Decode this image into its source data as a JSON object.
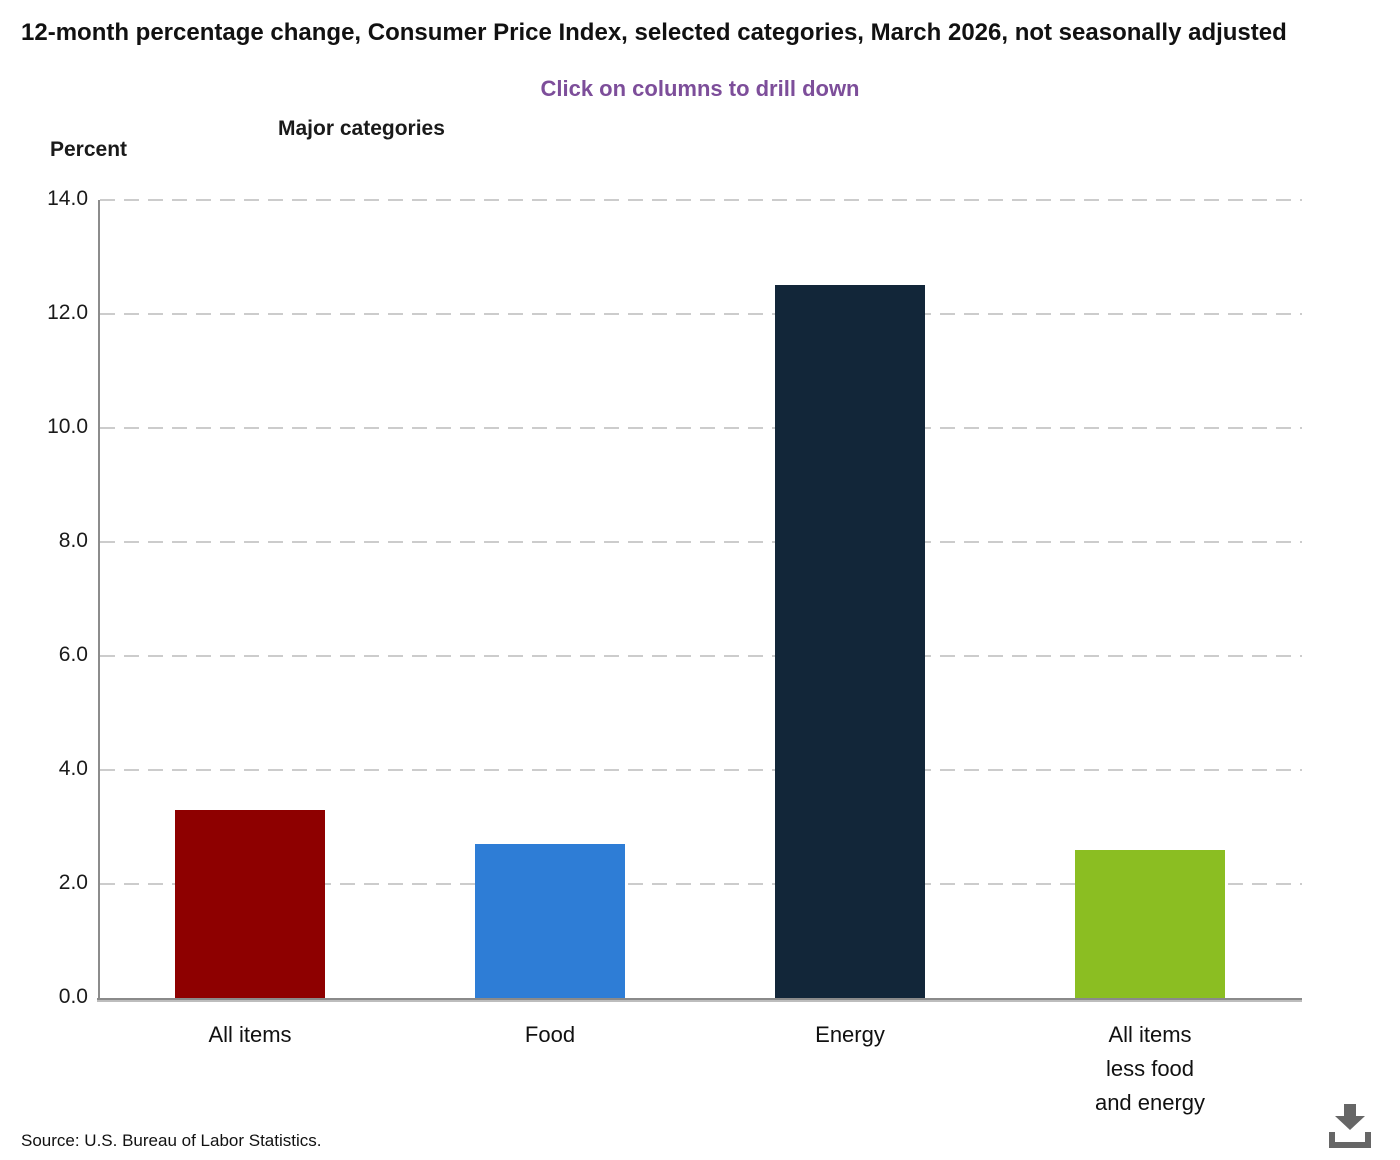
{
  "header": {
    "title": "12-month percentage change, Consumer Price Index, selected categories, March 2026, not seasonally adjusted",
    "subtitle": "Click on columns to drill down"
  },
  "chart_data": {
    "type": "bar",
    "title": "12-month percentage change, Consumer Price Index, selected categories, March 2026, not seasonally adjusted",
    "xlabel": "Major categories",
    "ylabel": "Percent",
    "categories": [
      "All items",
      "Food",
      "Energy",
      "All items less food and energy"
    ],
    "category_label_lines": [
      [
        "All items"
      ],
      [
        "Food"
      ],
      [
        "Energy"
      ],
      [
        "All items",
        "less food",
        "and energy"
      ]
    ],
    "values": [
      3.3,
      2.7,
      12.5,
      2.6
    ],
    "bar_colors": [
      "#8e0000",
      "#2e7dd6",
      "#122639",
      "#8bbe22"
    ],
    "ylim": [
      0,
      14
    ],
    "ytick_step": 2,
    "ytick_labels": [
      "0.0",
      "2.0",
      "4.0",
      "6.0",
      "8.0",
      "10.0",
      "12.0",
      "14.0"
    ],
    "grid": "horizontal-dashed",
    "legend": "none",
    "interaction_hint": "Click on columns to drill down"
  },
  "footer": {
    "source": "Source: U.S. Bureau of Labor Statistics."
  },
  "icons": {
    "download": "download-icon"
  },
  "colors": {
    "subtitle_purple": "#7d4e9a",
    "gridline": "#cccccc",
    "axis": "#8c8c8c",
    "icon_gray": "#666666",
    "text": "#111111"
  }
}
